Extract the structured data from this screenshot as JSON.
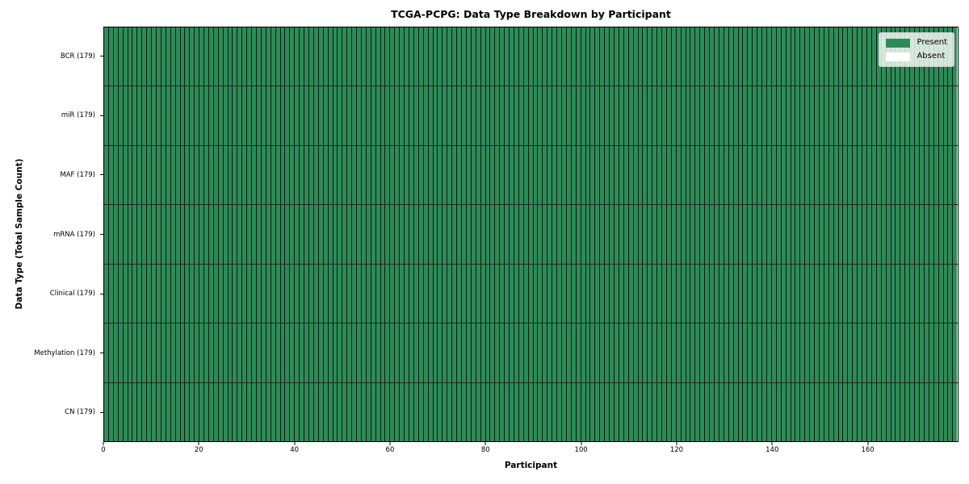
{
  "chart_data": {
    "type": "heatmap",
    "title": "TCGA-PCPG: Data Type Breakdown by Participant",
    "xlabel": "Participant",
    "ylabel": "Data Type (Total Sample Count)",
    "n_participants": 179,
    "xlim": [
      0,
      179
    ],
    "x_ticks": [
      0,
      20,
      40,
      60,
      80,
      100,
      120,
      140,
      160
    ],
    "rows": [
      {
        "data_type": "BCR",
        "label": "BCR (179)",
        "total_samples": 179,
        "present_count": 179,
        "absent_count": 0
      },
      {
        "data_type": "miR",
        "label": "miR (179)",
        "total_samples": 179,
        "present_count": 179,
        "absent_count": 0
      },
      {
        "data_type": "MAF",
        "label": "MAF (179)",
        "total_samples": 179,
        "present_count": 179,
        "absent_count": 0
      },
      {
        "data_type": "mRNA",
        "label": "mRNA (179)",
        "total_samples": 179,
        "present_count": 179,
        "absent_count": 0
      },
      {
        "data_type": "Clinical",
        "label": "Clinical (179)",
        "total_samples": 179,
        "present_count": 179,
        "absent_count": 0
      },
      {
        "data_type": "Methylation",
        "label": "Methylation (179)",
        "total_samples": 179,
        "present_count": 179,
        "absent_count": 0
      },
      {
        "data_type": "CN",
        "label": "CN (179)",
        "total_samples": 179,
        "present_count": 179,
        "absent_count": 0
      }
    ],
    "legend": {
      "position": "upper-right",
      "entries": [
        {
          "label": "Present",
          "color": "#2e8b57"
        },
        {
          "label": "Absent",
          "color": "#ffffff"
        }
      ]
    },
    "colors": {
      "present": "#2e8b57",
      "absent": "#ffffff",
      "cell_edge": "#000000",
      "axis": "#000000",
      "background": "#ffffff"
    }
  }
}
